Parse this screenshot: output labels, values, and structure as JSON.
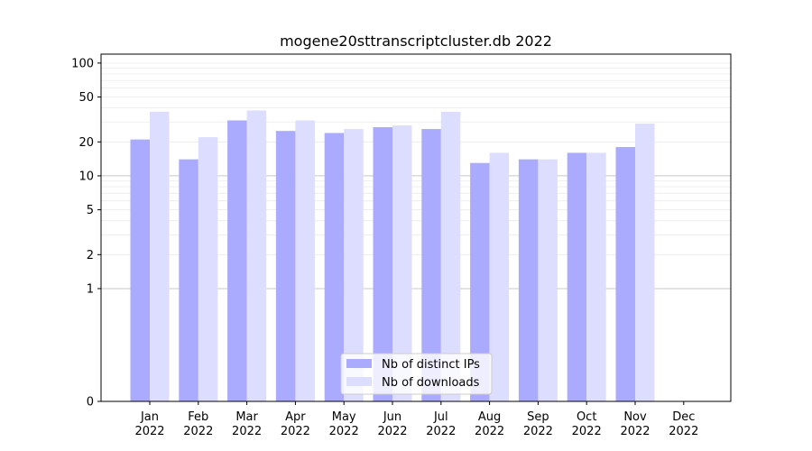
{
  "colors": {
    "ips": "#aaaaff",
    "downloads": "#ddddff",
    "grid_major": "#c8c8c8",
    "grid_minor": "#ececec"
  },
  "chart_data": {
    "type": "bar",
    "title": "mogene20sttranscriptcluster.db 2022",
    "xlabel": "",
    "ylabel": "",
    "scale": "symlog",
    "ylim": [
      0,
      120
    ],
    "yticks": [
      0,
      1,
      2,
      5,
      10,
      20,
      50,
      100
    ],
    "grid": true,
    "legend_position": "bottom-center",
    "categories": [
      [
        "Jan",
        "2022"
      ],
      [
        "Feb",
        "2022"
      ],
      [
        "Mar",
        "2022"
      ],
      [
        "Apr",
        "2022"
      ],
      [
        "May",
        "2022"
      ],
      [
        "Jun",
        "2022"
      ],
      [
        "Jul",
        "2022"
      ],
      [
        "Aug",
        "2022"
      ],
      [
        "Sep",
        "2022"
      ],
      [
        "Oct",
        "2022"
      ],
      [
        "Nov",
        "2022"
      ],
      [
        "Dec",
        "2022"
      ]
    ],
    "series": [
      {
        "name": "Nb of distinct IPs",
        "color": "#aaaaff",
        "values": [
          21,
          14,
          31,
          25,
          24,
          27,
          26,
          13,
          14,
          16,
          18,
          0
        ]
      },
      {
        "name": "Nb of downloads",
        "color": "#ddddff",
        "values": [
          37,
          22,
          38,
          31,
          26,
          28,
          37,
          16,
          14,
          16,
          29,
          0
        ]
      }
    ]
  }
}
